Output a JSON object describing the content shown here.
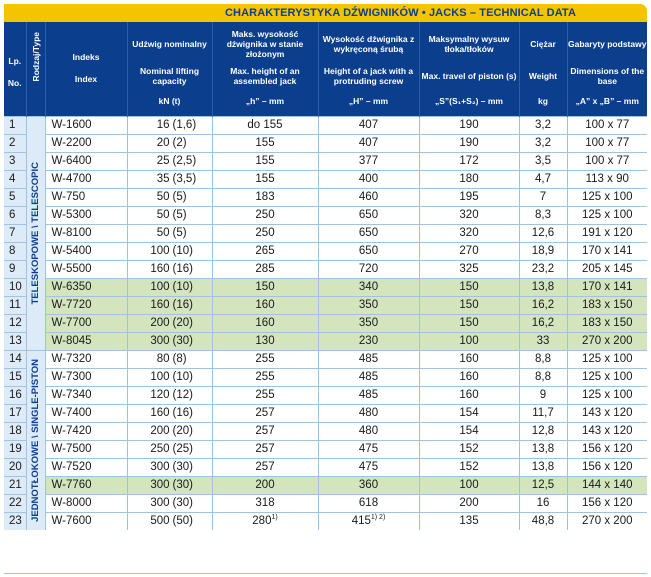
{
  "title": "CHARAKTERYSTYKA DŹWIGNIKÓW  •  JACKS – TECHNICAL DATA",
  "headers": {
    "lp": [
      "Lp.",
      "",
      "No."
    ],
    "type": "Rodzaj/Type",
    "index": [
      "Indeks",
      "Index"
    ],
    "capacity": [
      "Udźwig nominalny",
      "Nominal lifting capacity",
      "kN (t)"
    ],
    "max_height": [
      "Maks. wysokość dźwignika w stanie złożonym",
      "Max. height of an assembled jack",
      "„h” – mm"
    ],
    "screw_height": [
      "Wysokość dźwignika z wykręconą śrubą",
      "Height of a jack with a protruding screw",
      "„H” – mm"
    ],
    "travel": [
      "Maksymalny wysuw tłoka/tłoków",
      "Max. travel of piston (s)",
      "„S”(S₁+S₂) – mm"
    ],
    "weight": [
      "Ciężar",
      "Weight",
      "kg"
    ],
    "dimensions": [
      "Gabaryty podstawy",
      "Dimensions of the base",
      "„A” x „B” – mm"
    ]
  },
  "groups": {
    "telescopic": "TELESKOPOWE \\ TELESCOPIC",
    "single": "JEDNOTŁOKOWE \\ SINGLE-PISTON"
  },
  "colors": {
    "header_bg": "#0b3e8c",
    "title_bg": "#f5c400",
    "green_row": "#d4e5bd",
    "light_blue": "#dcebf7"
  },
  "rows": [
    {
      "no": "1",
      "index": "W-1600",
      "cap": "16",
      "capt": "(1,6)",
      "h": "do 155",
      "H": "407",
      "s": "190",
      "kg": "3,2",
      "dim": "100 x 77",
      "shade": "white"
    },
    {
      "no": "2",
      "index": "W-2200",
      "cap": "20",
      "capt": "(2)",
      "h": "155",
      "H": "407",
      "s": "190",
      "kg": "3,2",
      "dim": "100 x 77",
      "shade": "white"
    },
    {
      "no": "3",
      "index": "W-6400",
      "cap": "25",
      "capt": "(2,5)",
      "h": "155",
      "H": "377",
      "s": "172",
      "kg": "3,5",
      "dim": "100 x 77",
      "shade": "white"
    },
    {
      "no": "4",
      "index": "W-4700",
      "cap": "35",
      "capt": "(3,5)",
      "h": "155",
      "H": "400",
      "s": "180",
      "kg": "4,7",
      "dim": "113 x 90",
      "shade": "white"
    },
    {
      "no": "5",
      "index": "W-750",
      "cap": "50",
      "capt": "(5)",
      "h": "183",
      "H": "460",
      "s": "195",
      "kg": "7",
      "dim": "125 x 100",
      "shade": "white"
    },
    {
      "no": "6",
      "index": "W-5300",
      "cap": "50",
      "capt": "(5)",
      "h": "250",
      "H": "650",
      "s": "320",
      "kg": "8,3",
      "dim": "125 x 100",
      "shade": "white"
    },
    {
      "no": "7",
      "index": "W-8100",
      "cap": "50",
      "capt": "(5)",
      "h": "250",
      "H": "650",
      "s": "320",
      "kg": "12,6",
      "dim": "191 x 120",
      "shade": "white"
    },
    {
      "no": "8",
      "index": "W-5400",
      "cap": "100",
      "capt": "(10)",
      "h": "265",
      "H": "650",
      "s": "270",
      "kg": "18,9",
      "dim": "170 x 141",
      "shade": "white"
    },
    {
      "no": "9",
      "index": "W-5500",
      "cap": "160",
      "capt": "(16)",
      "h": "285",
      "H": "720",
      "s": "325",
      "kg": "23,2",
      "dim": "205 x 145",
      "shade": "white"
    },
    {
      "no": "10",
      "index": "W-6350",
      "cap": "100",
      "capt": "(10)",
      "h": "150",
      "H": "340",
      "s": "150",
      "kg": "13,8",
      "dim": "170 x 141",
      "shade": "green"
    },
    {
      "no": "11",
      "index": "W-7720",
      "cap": "160",
      "capt": "(16)",
      "h": "160",
      "H": "350",
      "s": "150",
      "kg": "16,2",
      "dim": "183 x 150",
      "shade": "green"
    },
    {
      "no": "12",
      "index": "W-7700",
      "cap": "200",
      "capt": "(20)",
      "h": "160",
      "H": "350",
      "s": "150",
      "kg": "16,2",
      "dim": "183 x 150",
      "shade": "green"
    },
    {
      "no": "13",
      "index": "W-8045",
      "cap": "300",
      "capt": "(30)",
      "h": "130",
      "H": "230",
      "s": "100",
      "kg": "33",
      "dim": "270 x 200",
      "shade": "green"
    },
    {
      "no": "14",
      "index": "W-7320",
      "cap": "80",
      "capt": "(8)",
      "h": "255",
      "H": "485",
      "s": "160",
      "kg": "8,8",
      "dim": "125 x 100",
      "shade": "white"
    },
    {
      "no": "15",
      "index": "W-7300",
      "cap": "100",
      "capt": "(10)",
      "h": "255",
      "H": "485",
      "s": "160",
      "kg": "8,8",
      "dim": "125 x 100",
      "shade": "white"
    },
    {
      "no": "16",
      "index": "W-7340",
      "cap": "120",
      "capt": "(12)",
      "h": "255",
      "H": "485",
      "s": "160",
      "kg": "9",
      "dim": "125 x 100",
      "shade": "white"
    },
    {
      "no": "17",
      "index": "W-7400",
      "cap": "160",
      "capt": "(16)",
      "h": "257",
      "H": "480",
      "s": "154",
      "kg": "11,7",
      "dim": "143 x 120",
      "shade": "white"
    },
    {
      "no": "18",
      "index": "W-7420",
      "cap": "200",
      "capt": "(20)",
      "h": "257",
      "H": "480",
      "s": "154",
      "kg": "12,8",
      "dim": "143 x 120",
      "shade": "white"
    },
    {
      "no": "19",
      "index": "W-7500",
      "cap": "250",
      "capt": "(25)",
      "h": "257",
      "H": "475",
      "s": "152",
      "kg": "13,8",
      "dim": "156 x 120",
      "shade": "white"
    },
    {
      "no": "20",
      "index": "W-7520",
      "cap": "300",
      "capt": "(30)",
      "h": "257",
      "H": "475",
      "s": "152",
      "kg": "13,8",
      "dim": "156 x 120",
      "shade": "white"
    },
    {
      "no": "21",
      "index": "W-7760",
      "cap": "300",
      "capt": "(30)",
      "h": "200",
      "H": "360",
      "s": "100",
      "kg": "12,5",
      "dim": "144 x 140",
      "shade": "green"
    },
    {
      "no": "22",
      "index": "W-8000",
      "cap": "300",
      "capt": "(30)",
      "h": "318",
      "H": "618",
      "s": "200",
      "kg": "16",
      "dim": "156 x 120",
      "shade": "white"
    },
    {
      "no": "23",
      "index": "W-7600",
      "cap": "500",
      "capt": "(50)",
      "h": "280",
      "hsup": "1)",
      "H": "415",
      "Hsup": "1) 2)",
      "s": "135",
      "kg": "48,8",
      "dim": "270 x 200",
      "shade": "white"
    }
  ]
}
